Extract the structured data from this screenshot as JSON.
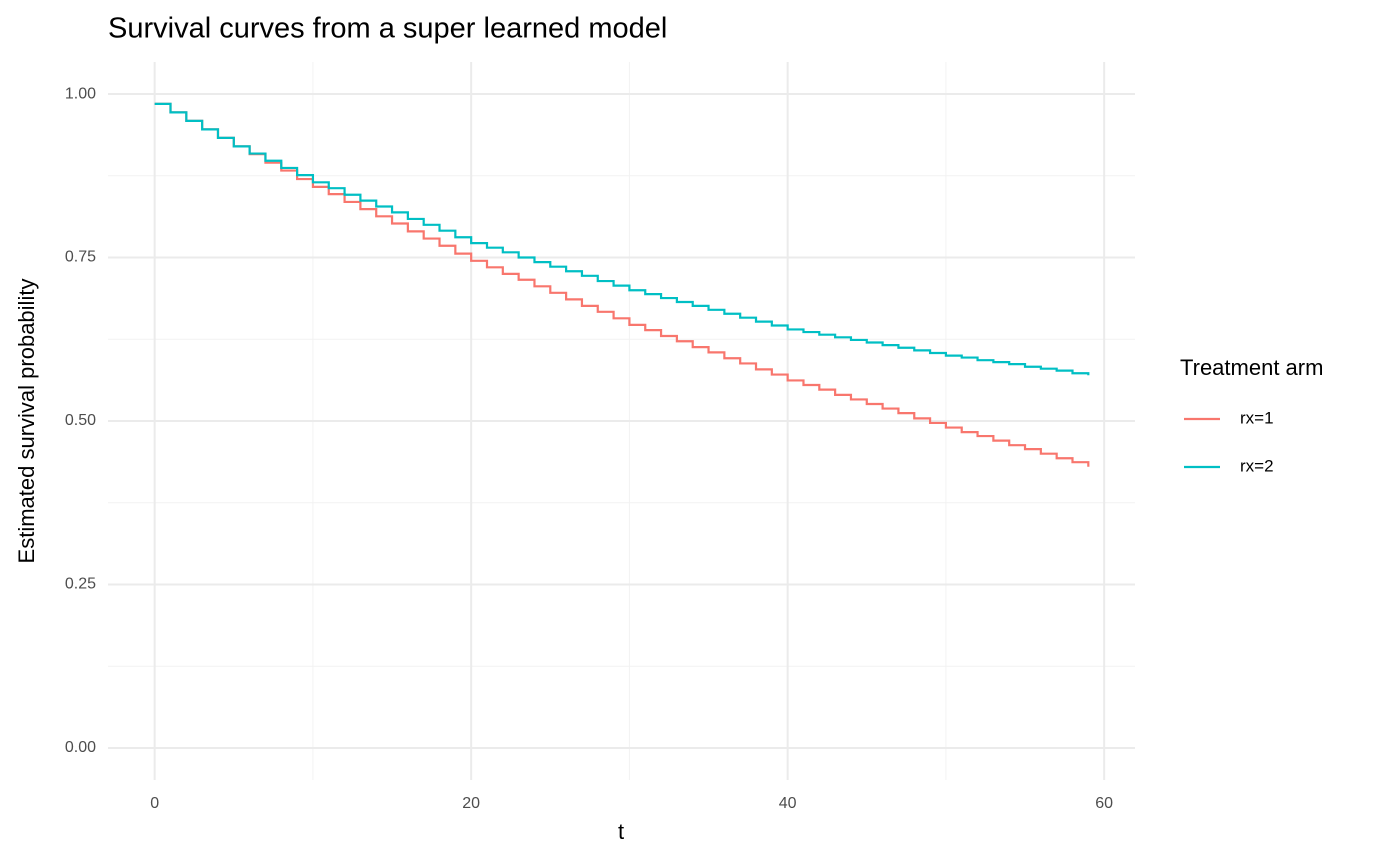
{
  "chart_data": {
    "type": "line",
    "title": "Survival curves from a super learned model",
    "x_label": "t",
    "y_label": "Estimated survival probability",
    "legend_title": "Treatment arm",
    "legend_position": "right",
    "step": true,
    "grid": true,
    "x": [
      0,
      1,
      2,
      3,
      4,
      5,
      6,
      7,
      8,
      9,
      10,
      11,
      12,
      13,
      14,
      15,
      16,
      17,
      18,
      19,
      20,
      21,
      22,
      23,
      24,
      25,
      26,
      27,
      28,
      29,
      30,
      31,
      32,
      33,
      34,
      35,
      36,
      37,
      38,
      39,
      40,
      41,
      42,
      43,
      44,
      45,
      46,
      47,
      48,
      49,
      50,
      51,
      52,
      53,
      54,
      55,
      56,
      57,
      58,
      59
    ],
    "series": [
      {
        "name": "rx=1",
        "color": "#f8766d",
        "values": [
          0.985,
          0.972,
          0.959,
          0.946,
          0.933,
          0.92,
          0.908,
          0.895,
          0.883,
          0.87,
          0.858,
          0.847,
          0.835,
          0.824,
          0.813,
          0.802,
          0.79,
          0.779,
          0.768,
          0.756,
          0.745,
          0.735,
          0.725,
          0.716,
          0.706,
          0.696,
          0.686,
          0.676,
          0.667,
          0.657,
          0.647,
          0.639,
          0.63,
          0.622,
          0.613,
          0.605,
          0.596,
          0.588,
          0.579,
          0.571,
          0.562,
          0.555,
          0.548,
          0.54,
          0.533,
          0.526,
          0.519,
          0.512,
          0.504,
          0.497,
          0.49,
          0.483,
          0.477,
          0.47,
          0.463,
          0.457,
          0.45,
          0.443,
          0.437,
          0.43
        ]
      },
      {
        "name": "rx=2",
        "color": "#00bfc4",
        "values": [
          0.985,
          0.972,
          0.959,
          0.946,
          0.933,
          0.92,
          0.909,
          0.898,
          0.887,
          0.876,
          0.865,
          0.856,
          0.846,
          0.837,
          0.828,
          0.819,
          0.809,
          0.8,
          0.791,
          0.781,
          0.772,
          0.765,
          0.758,
          0.75,
          0.743,
          0.736,
          0.729,
          0.722,
          0.714,
          0.707,
          0.7,
          0.694,
          0.688,
          0.682,
          0.676,
          0.67,
          0.664,
          0.658,
          0.652,
          0.646,
          0.64,
          0.636,
          0.632,
          0.628,
          0.624,
          0.62,
          0.616,
          0.612,
          0.608,
          0.604,
          0.6,
          0.597,
          0.593,
          0.59,
          0.587,
          0.583,
          0.58,
          0.577,
          0.573,
          0.57
        ]
      }
    ],
    "xlim": [
      -2.95,
      61.95
    ],
    "ylim": [
      -0.049,
      1.049
    ],
    "xticks": [
      0,
      20,
      40,
      60
    ],
    "yticks": [
      {
        "value": 0,
        "label": "0.00"
      },
      {
        "value": 0.25,
        "label": "0.25"
      },
      {
        "value": 0.5,
        "label": "0.50"
      },
      {
        "value": 0.75,
        "label": "0.75"
      },
      {
        "value": 1,
        "label": "1.00"
      }
    ]
  }
}
